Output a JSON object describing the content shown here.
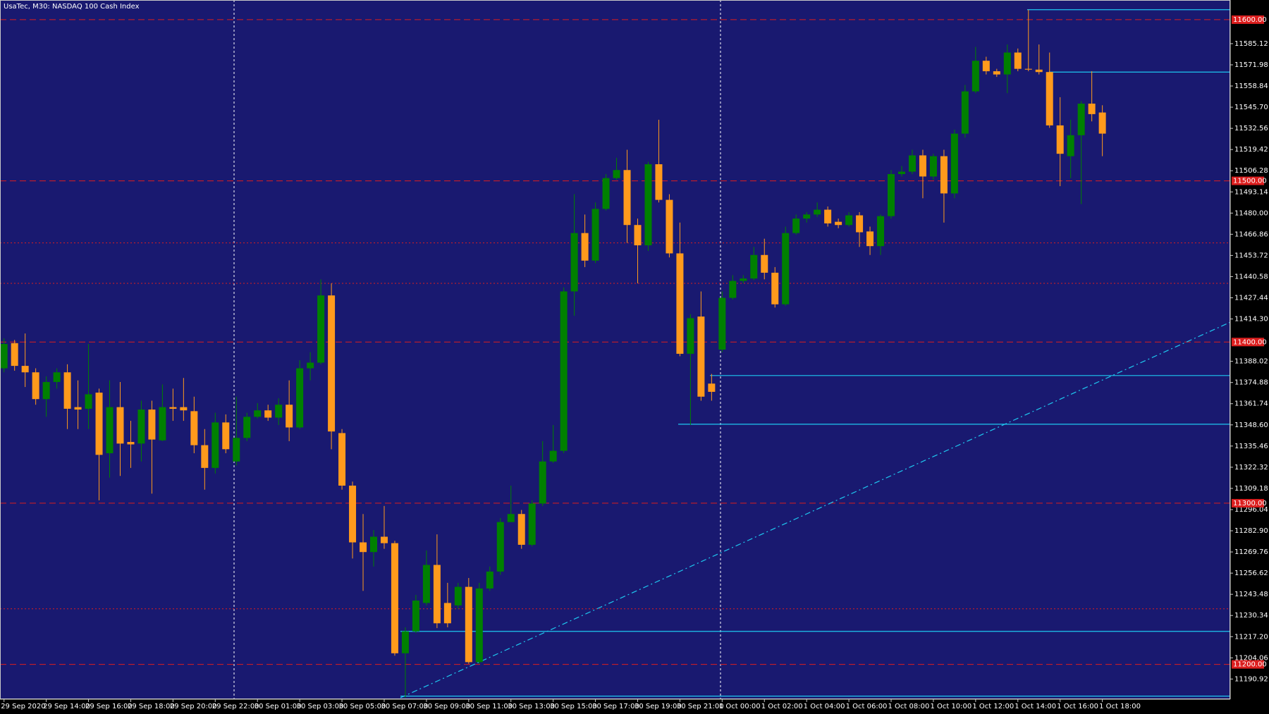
{
  "chart_data": {
    "type": "candlestick",
    "title": "UsaTec, M30:  NASDAQ 100 Cash Index",
    "categories": [
      "29 Sep 2020",
      null,
      null,
      null,
      "29 Sep 14:00",
      null,
      null,
      null,
      "29 Sep 16:00",
      null,
      null,
      null,
      "29 Sep 18:00",
      null,
      null,
      null,
      "29 Sep 20:00",
      null,
      null,
      null,
      "29 Sep 22:00",
      null,
      null,
      null,
      "30 Sep 01:00",
      null,
      null,
      null,
      "30 Sep 03:00",
      null,
      null,
      null,
      "30 Sep 05:00",
      null,
      null,
      null,
      "30 Sep 07:00",
      null,
      null,
      null,
      "30 Sep 09:00",
      null,
      null,
      null,
      "30 Sep 11:00",
      null,
      null,
      null,
      "30 Sep 13:00",
      null,
      null,
      null,
      "30 Sep 15:00",
      null,
      null,
      null,
      "30 Sep 17:00",
      null,
      null,
      null,
      "30 Sep 19:00",
      null,
      null,
      null,
      "30 Sep 21:00",
      null,
      null,
      null,
      "1 Oct 00:00",
      null,
      null,
      null,
      "1 Oct 02:00",
      null,
      null,
      null,
      "1 Oct 04:00",
      null,
      null,
      null,
      "1 Oct 06:00",
      null,
      null,
      null,
      "1 Oct 08:00",
      null,
      null,
      null,
      "1 Oct 10:00",
      null,
      null,
      null,
      "1 Oct 12:00",
      null,
      null,
      null,
      "1 Oct 14:00",
      null,
      null,
      null,
      "1 Oct 16:00",
      null,
      null,
      null,
      "1 Oct 18:00"
    ],
    "open": [
      11383.7,
      11399.3,
      11385.2,
      11381.2,
      11364.6,
      11375.2,
      11381.2,
      11359.6,
      11358.6,
      11368.6,
      11331.0,
      11359.6,
      11338.0,
      11337.0,
      11358.1,
      11339.0,
      11359.6,
      11359.6,
      11357.1,
      11336.0,
      11321.9,
      11350.1,
      11325.9,
      11340.5,
      11353.6,
      11357.6,
      11353.1,
      11361.1,
      11347.0,
      11383.7,
      11387.2,
      11428.9,
      11343.5,
      11310.9,
      11275.7,
      11269.7,
      11279.2,
      11275.2,
      11206.9,
      11220.5,
      11238.1,
      11261.7,
      11238.1,
      11236.6,
      11248.1,
      11201.4,
      11247.1,
      11257.6,
      11288.3,
      11293.3,
      11274.2,
      11299.8,
      11325.9,
      11332.5,
      11431.4,
      11467.6,
      11450.5,
      11482.6,
      11501.7,
      11506.7,
      11472.6,
      11460.0,
      11510.3,
      11488.2,
      11455.0,
      11392.7,
      11415.8,
      11374.2,
      11395.3,
      11427.4,
      11437.9,
      11439.4,
      11454.0,
      11443.0,
      11423.4,
      11467.6,
      11476.6,
      11479.1,
      11482.1,
      11474.6,
      11472.6,
      11478.6,
      11468.6,
      11459.5,
      11478.1,
      11504.2,
      11505.7,
      11515.8,
      11502.7,
      11515.3,
      11492.2,
      11529.3,
      11555.5,
      11574.5,
      11568.0,
      11566.0,
      11579.6,
      11569.5,
      11569.0,
      11567.5,
      11534.4,
      11515.3,
      11528.3,
      11547.9,
      11542.4
    ],
    "high": [
      11402.3,
      11401.3,
      11405.3,
      11383.7,
      11378.7,
      11383.7,
      11386.2,
      11376.2,
      11398.8,
      11371.1,
      11376.2,
      11375.2,
      11351.1,
      11363.6,
      11363.6,
      11373.7,
      11371.1,
      11377.7,
      11366.1,
      11346.0,
      11356.1,
      11355.1,
      11366.1,
      11356.1,
      11362.1,
      11361.1,
      11365.1,
      11376.2,
      11388.7,
      11393.7,
      11438.9,
      11436.4,
      11346.0,
      11313.4,
      11293.3,
      11283.3,
      11298.3,
      11276.7,
      11223.0,
      11243.1,
      11270.7,
      11280.7,
      11250.6,
      11250.6,
      11253.6,
      11250.6,
      11260.7,
      11290.8,
      11310.9,
      11295.8,
      11301.8,
      11338.5,
      11348.5,
      11433.9,
      11491.7,
      11479.1,
      11486.6,
      11504.2,
      11514.3,
      11519.3,
      11476.6,
      11511.8,
      11537.9,
      11491.7,
      11474.1,
      11417.3,
      11431.4,
      11380.2,
      11431.4,
      11441.5,
      11441.5,
      11459.0,
      11464.1,
      11446.5,
      11471.6,
      11479.1,
      11480.6,
      11486.6,
      11484.1,
      11476.6,
      11480.6,
      11480.6,
      11471.6,
      11479.1,
      11506.7,
      11509.2,
      11519.3,
      11519.3,
      11516.8,
      11519.3,
      11531.8,
      11559.5,
      11583.1,
      11577.0,
      11569.5,
      11584.6,
      11582.1,
      11606.2,
      11584.6,
      11579.6,
      11551.9,
      11537.9,
      11549.4,
      11568.0,
      11546.9
    ],
    "low": [
      11381.2,
      11382.2,
      11372.1,
      11361.1,
      11353.6,
      11371.1,
      11346.0,
      11346.0,
      11346.0,
      11301.8,
      11315.9,
      11316.9,
      11321.9,
      11325.9,
      11305.9,
      11338.5,
      11351.1,
      11351.1,
      11331.0,
      11308.4,
      11318.4,
      11331.0,
      11323.4,
      11338.5,
      11352.6,
      11351.1,
      11348.5,
      11338.5,
      11346.0,
      11376.2,
      11386.2,
      11333.5,
      11308.4,
      11265.7,
      11245.6,
      11260.7,
      11271.7,
      11205.4,
      11179.3,
      11219.5,
      11236.6,
      11222.5,
      11223.0,
      11234.5,
      11200.4,
      11200.4,
      11245.6,
      11255.6,
      11288.3,
      11271.7,
      11273.2,
      11298.3,
      11324.9,
      11331.0,
      11416.3,
      11446.5,
      11449.0,
      11481.6,
      11500.7,
      11461.5,
      11436.4,
      11456.5,
      11486.6,
      11452.5,
      11391.2,
      11348.5,
      11363.6,
      11363.6,
      11393.7,
      11426.4,
      11436.4,
      11438.4,
      11438.9,
      11421.4,
      11422.4,
      11466.6,
      11474.1,
      11477.6,
      11471.6,
      11470.6,
      11471.6,
      11459.0,
      11454.0,
      11454.0,
      11476.6,
      11502.7,
      11504.2,
      11489.2,
      11500.7,
      11474.1,
      11489.2,
      11526.8,
      11554.4,
      11566.0,
      11564.5,
      11554.4,
      11568.0,
      11568.0,
      11566.0,
      11532.9,
      11496.7,
      11501.7,
      11485.6,
      11536.9,
      11515.3
    ],
    "close": [
      11398.8,
      11385.2,
      11381.2,
      11364.6,
      11375.2,
      11381.2,
      11358.6,
      11358.1,
      11367.6,
      11330.0,
      11359.6,
      11337.0,
      11336.5,
      11358.1,
      11339.5,
      11359.6,
      11358.6,
      11357.6,
      11336.0,
      11321.9,
      11350.1,
      11333.5,
      11340.5,
      11353.6,
      11357.6,
      11353.1,
      11361.1,
      11347.0,
      11383.7,
      11387.2,
      11428.9,
      11344.5,
      11310.9,
      11275.7,
      11269.7,
      11279.2,
      11275.2,
      11206.9,
      11220.5,
      11239.6,
      11261.7,
      11225.5,
      11225.5,
      11248.1,
      11201.4,
      11247.1,
      11257.6,
      11288.3,
      11293.3,
      11274.2,
      11299.8,
      11325.9,
      11332.5,
      11431.4,
      11467.6,
      11450.5,
      11482.6,
      11501.7,
      11506.7,
      11472.6,
      11460.0,
      11510.3,
      11488.2,
      11455.0,
      11392.7,
      11414.8,
      11366.1,
      11369.1,
      11427.4,
      11437.9,
      11439.4,
      11454.0,
      11443.0,
      11423.4,
      11467.6,
      11476.6,
      11479.1,
      11482.1,
      11473.6,
      11472.6,
      11478.6,
      11468.1,
      11459.5,
      11478.1,
      11504.2,
      11505.7,
      11515.8,
      11502.7,
      11515.3,
      11492.2,
      11529.3,
      11555.5,
      11574.5,
      11568.0,
      11566.0,
      11579.6,
      11569.5,
      11569.0,
      11567.5,
      11534.4,
      11516.8,
      11528.3,
      11547.9,
      11541.4,
      11529.3
    ],
    "up_color": "#008000",
    "down_color": "#ff9a1c",
    "ylim": [
      11178.4,
      11612.2
    ],
    "yticks": [
      11190.92,
      11204.06,
      {
        "value": 11217.2,
        "label": "11217.20"
      },
      11230.34,
      11243.48,
      11256.62,
      11269.76,
      {
        "value": 11282.9,
        "label": "11282.90"
      },
      11296.04,
      11309.18,
      11322.32,
      11335.46,
      {
        "value": 11348.6,
        "label": "11348.60"
      },
      11361.74,
      11374.88,
      11388.02,
      {
        "value": 11414.3,
        "label": "11414.30"
      },
      11427.44,
      11440.58,
      11453.72,
      11466.86,
      {
        "value": 11480,
        "label": "11480.00"
      },
      11493.14,
      11506.28,
      11519.42,
      11532.56,
      {
        "value": 11545.7,
        "label": "11545.70"
      },
      11558.84,
      11571.98,
      11585.12
    ],
    "price_levels": [
      {
        "value": 11600,
        "label": "11600.00"
      },
      {
        "value": 11500,
        "label": "11500.00"
      },
      {
        "value": 11400,
        "label": "11400.00"
      },
      {
        "value": 11300,
        "label": "11300.00"
      },
      {
        "value": 11200,
        "label": "11200.00"
      }
    ],
    "level_color": "#dc1e1e",
    "dotted_levels": [
      11461.5,
      11436.4,
      11234.5
    ],
    "horizontal_lines": [
      11606.2,
      11567.5,
      11379.2,
      11349.0,
      11220.5,
      11180.3
    ],
    "trend_line": [
      11179.3,
      11412.3
    ],
    "line_color": "#1ec8f0",
    "background": "#191970"
  }
}
